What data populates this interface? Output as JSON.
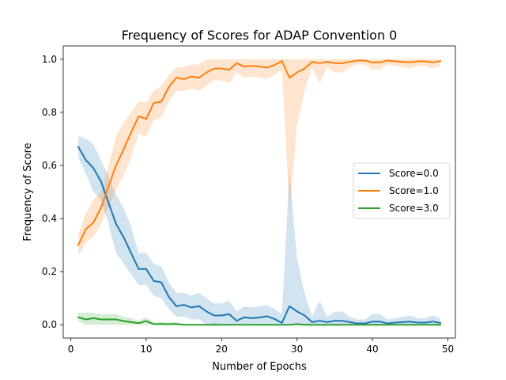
{
  "chart_data": {
    "type": "line",
    "title": "Frequency of Scores for ADAP Convention 0",
    "xlabel": "Number of Epochs",
    "ylabel": "Frequency of Score",
    "xlim": [
      -1,
      51
    ],
    "ylim": [
      -0.05,
      1.05
    ],
    "xticks": [
      0,
      10,
      20,
      30,
      40,
      50
    ],
    "xtick_labels": [
      "0",
      "10",
      "20",
      "30",
      "40",
      "50"
    ],
    "yticks": [
      0.0,
      0.2,
      0.4,
      0.6,
      0.8,
      1.0
    ],
    "ytick_labels": [
      "0.0",
      "0.2",
      "0.4",
      "0.6",
      "0.8",
      "1.0"
    ],
    "grid": false,
    "legend_position": "center-right",
    "x": [
      1,
      2,
      3,
      4,
      5,
      6,
      7,
      8,
      9,
      10,
      11,
      12,
      13,
      14,
      15,
      16,
      17,
      18,
      19,
      20,
      21,
      22,
      23,
      24,
      25,
      26,
      27,
      28,
      29,
      30,
      31,
      32,
      33,
      34,
      35,
      36,
      37,
      38,
      39,
      40,
      41,
      42,
      43,
      44,
      45,
      46,
      47,
      48,
      49
    ],
    "series": [
      {
        "name": "Score=0.0",
        "color": "#1f77b4",
        "values": [
          0.67,
          0.62,
          0.59,
          0.54,
          0.46,
          0.38,
          0.33,
          0.27,
          0.21,
          0.21,
          0.165,
          0.16,
          0.105,
          0.07,
          0.075,
          0.065,
          0.07,
          0.05,
          0.035,
          0.035,
          0.04,
          0.015,
          0.028,
          0.025,
          0.027,
          0.032,
          0.022,
          0.007,
          0.07,
          0.05,
          0.035,
          0.01,
          0.015,
          0.01,
          0.015,
          0.015,
          0.01,
          0.005,
          0.005,
          0.012,
          0.012,
          0.005,
          0.008,
          0.01,
          0.012,
          0.008,
          0.008,
          0.012,
          0.007
        ],
        "lower": [
          0.63,
          0.57,
          0.5,
          0.47,
          0.38,
          0.27,
          0.23,
          0.19,
          0.15,
          0.15,
          0.11,
          0.1,
          0.06,
          0.03,
          0.03,
          0.02,
          0.02,
          0.0,
          0.0,
          0.0,
          0.0,
          0.0,
          0.0,
          0.0,
          0.0,
          0.0,
          0.0,
          0.0,
          0.0,
          0.0,
          0.0,
          0.0,
          0.0,
          0.0,
          0.0,
          0.0,
          0.0,
          0.0,
          0.0,
          0.0,
          0.0,
          0.0,
          0.0,
          0.0,
          0.0,
          0.0,
          0.0,
          0.0,
          0.0
        ],
        "upper": [
          0.71,
          0.7,
          0.68,
          0.62,
          0.56,
          0.49,
          0.44,
          0.37,
          0.27,
          0.27,
          0.23,
          0.22,
          0.16,
          0.12,
          0.12,
          0.11,
          0.12,
          0.1,
          0.08,
          0.08,
          0.09,
          0.05,
          0.07,
          0.065,
          0.07,
          0.075,
          0.06,
          0.04,
          0.58,
          0.25,
          0.12,
          0.03,
          0.09,
          0.03,
          0.05,
          0.05,
          0.03,
          0.02,
          0.02,
          0.04,
          0.04,
          0.02,
          0.025,
          0.03,
          0.035,
          0.025,
          0.025,
          0.035,
          0.025
        ]
      },
      {
        "name": "Score=1.0",
        "color": "#ff7f0e",
        "values": [
          0.3,
          0.36,
          0.385,
          0.44,
          0.52,
          0.6,
          0.66,
          0.725,
          0.785,
          0.775,
          0.835,
          0.84,
          0.895,
          0.93,
          0.925,
          0.935,
          0.93,
          0.95,
          0.965,
          0.965,
          0.96,
          0.985,
          0.972,
          0.975,
          0.973,
          0.968,
          0.978,
          0.993,
          0.93,
          0.95,
          0.965,
          0.99,
          0.985,
          0.99,
          0.985,
          0.985,
          0.99,
          0.995,
          0.995,
          0.988,
          0.988,
          0.995,
          0.992,
          0.99,
          0.988,
          0.992,
          0.992,
          0.988,
          0.993
        ],
        "lower": [
          0.26,
          0.31,
          0.33,
          0.38,
          0.44,
          0.51,
          0.56,
          0.63,
          0.72,
          0.71,
          0.77,
          0.78,
          0.84,
          0.88,
          0.88,
          0.89,
          0.88,
          0.9,
          0.92,
          0.92,
          0.91,
          0.95,
          0.93,
          0.935,
          0.93,
          0.925,
          0.94,
          0.96,
          0.42,
          0.75,
          0.88,
          0.97,
          0.91,
          0.97,
          0.95,
          0.95,
          0.97,
          0.98,
          0.98,
          0.96,
          0.96,
          0.98,
          0.975,
          0.97,
          0.965,
          0.975,
          0.975,
          0.965,
          0.975
        ],
        "upper": [
          0.34,
          0.42,
          0.47,
          0.5,
          0.6,
          0.71,
          0.76,
          0.8,
          0.84,
          0.84,
          0.88,
          0.9,
          0.94,
          0.97,
          0.97,
          0.98,
          0.98,
          1.0,
          1.0,
          1.0,
          1.0,
          1.0,
          1.0,
          1.0,
          1.0,
          1.0,
          1.0,
          1.0,
          1.0,
          1.0,
          1.0,
          1.0,
          1.0,
          1.0,
          1.0,
          1.0,
          1.0,
          1.0,
          1.0,
          1.0,
          1.0,
          1.0,
          1.0,
          1.0,
          1.0,
          1.0,
          1.0,
          1.0,
          1.0
        ]
      },
      {
        "name": "Score=3.0",
        "color": "#2ca02c",
        "values": [
          0.028,
          0.02,
          0.025,
          0.02,
          0.02,
          0.02,
          0.014,
          0.01,
          0.006,
          0.014,
          0.002,
          0.003,
          0.002,
          0.003,
          0.0,
          0.0,
          0.0,
          0.0,
          0.0,
          0.0,
          0.0,
          0.0,
          0.0,
          0.0,
          0.0,
          0.0,
          0.0,
          0.0,
          0.0,
          0.002,
          0.0,
          0.0,
          0.0,
          0.0,
          0.0,
          0.0,
          0.0,
          0.0,
          0.0,
          0.0,
          0.0,
          0.0,
          0.0,
          0.0,
          0.0,
          0.0,
          0.0,
          0.0,
          0.0
        ],
        "lower": [
          0.013,
          0.0,
          0.0,
          0.0,
          0.0,
          0.0,
          0.0,
          0.0,
          0.0,
          0.0,
          0.0,
          0.0,
          0.0,
          0.0,
          0.0,
          0.0,
          0.0,
          0.0,
          0.0,
          0.0,
          0.0,
          0.0,
          0.0,
          0.0,
          0.0,
          0.0,
          0.0,
          0.0,
          0.0,
          0.0,
          0.0,
          0.0,
          0.0,
          0.0,
          0.0,
          0.0,
          0.0,
          0.0,
          0.0,
          0.0,
          0.0,
          0.0,
          0.0,
          0.0,
          0.0,
          0.0,
          0.0,
          0.0,
          0.0
        ],
        "upper": [
          0.045,
          0.045,
          0.045,
          0.04,
          0.04,
          0.04,
          0.03,
          0.025,
          0.015,
          0.028,
          0.01,
          0.01,
          0.01,
          0.01,
          0.0,
          0.0,
          0.0,
          0.0,
          0.008,
          0.0,
          0.0,
          0.0,
          0.0,
          0.0,
          0.0,
          0.0,
          0.0,
          0.0,
          0.0,
          0.008,
          0.0,
          0.0,
          0.0,
          0.0,
          0.0,
          0.0,
          0.0,
          0.0,
          0.0,
          0.0,
          0.0,
          0.0,
          0.0,
          0.0,
          0.0,
          0.0,
          0.0,
          0.0,
          0.0
        ]
      }
    ]
  }
}
